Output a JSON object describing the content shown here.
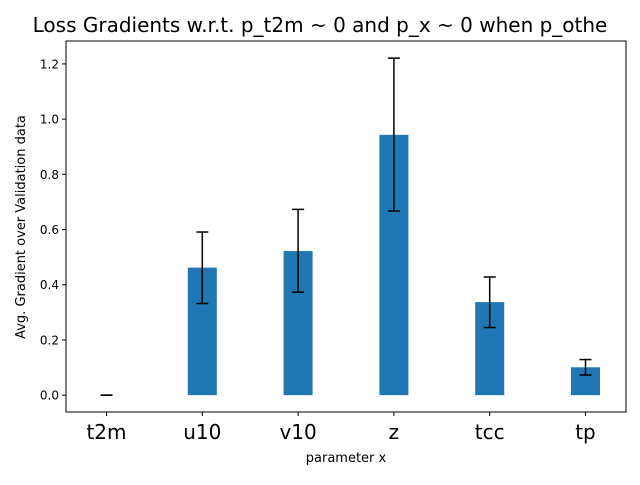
{
  "chart_data": {
    "type": "bar",
    "title": "Loss Gradients w.r.t. p_t2m ~ 0 and p_x ~ 0 when p_othe",
    "xlabel": "parameter x",
    "ylabel": "Avg. Gradient over Validation data",
    "categories": [
      "t2m",
      "u10",
      "v10",
      "z",
      "tcc",
      "tp"
    ],
    "values": [
      0.0,
      0.462,
      0.522,
      0.943,
      0.337,
      0.101
    ],
    "error_low": [
      0.0,
      0.332,
      0.373,
      0.667,
      0.245,
      0.073
    ],
    "error_high": [
      0.0,
      0.591,
      0.673,
      1.221,
      0.428,
      0.129
    ],
    "ylim": [
      -0.061,
      1.283
    ],
    "yticks": [
      0.0,
      0.2,
      0.4,
      0.6,
      0.8,
      1.0,
      1.2
    ],
    "ytick_labels": [
      "0.0",
      "0.2",
      "0.4",
      "0.6",
      "0.8",
      "1.0",
      "1.2"
    ],
    "grid": false,
    "colors": {
      "bar": "#1f77b4",
      "error_bar": "#000000",
      "axes": "#000000"
    }
  }
}
